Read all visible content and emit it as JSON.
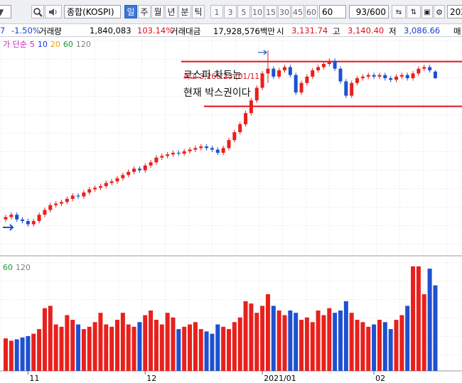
{
  "toolbar": {
    "code_partial": "▼",
    "symbol": "종합(KOSPI)",
    "periods": [
      "일",
      "주",
      "월",
      "년",
      "분",
      "틱"
    ],
    "intervals": [
      "1",
      "3",
      "5",
      "10",
      "15",
      "30",
      "45",
      "60"
    ],
    "interval_select": "60",
    "count": "93/600",
    "date_partial": "202"
  },
  "info": {
    "left_partial": "7",
    "change": "-1.50%",
    "volume_label": "거래량",
    "volume": "1,840,083",
    "volume_ratio": "103.14%",
    "amount_label": "거래대금",
    "amount": "17,928,576백만",
    "open_label": "시",
    "open": "3,131.74",
    "high_label": "고",
    "high": "3,140.40",
    "low_label": "저",
    "low": "3,086.66",
    "right_partial": "매"
  },
  "chart_data": {
    "type": "candlestick",
    "legend": {
      "prefix": "가 단순",
      "ma": [
        {
          "name": "5",
          "color": "#d020c0"
        },
        {
          "name": "10",
          "color": "#2030e0"
        },
        {
          "name": "20",
          "color": "#e8a010"
        },
        {
          "name": "60",
          "color": "#10a030"
        },
        {
          "name": "120",
          "color": "#808080"
        }
      ]
    },
    "volume_legend": [
      {
        "name": "60",
        "color": "#10a030"
      },
      {
        "name": "120",
        "color": "#808080"
      }
    ],
    "annotations": {
      "high_note": "최고 3,266.23 (01/11)",
      "comment": [
        "코스피 차트는",
        "현재 박스권이다"
      ]
    },
    "up_color": "#e8201c",
    "down_color": "#1e50d0",
    "ylim": [
      1980,
      3350
    ],
    "vol_ylim": [
      0,
      2400000
    ],
    "box_lines": [
      3195,
      2913
    ],
    "box_color": "#e0101a",
    "categories": [
      null,
      null,
      null,
      null,
      "11",
      null,
      null,
      null,
      null,
      null,
      null,
      null,
      null,
      null,
      null,
      null,
      null,
      null,
      null,
      null,
      null,
      null,
      null,
      null,
      null,
      "12",
      null,
      null,
      null,
      null,
      null,
      null,
      null,
      null,
      null,
      null,
      null,
      null,
      null,
      null,
      null,
      null,
      null,
      null,
      null,
      null,
      "2021/01",
      null,
      null,
      null,
      null,
      null,
      null,
      null,
      null,
      null,
      null,
      null,
      null,
      null,
      null,
      null,
      null,
      null,
      null,
      null,
      "02",
      null,
      null,
      null,
      null,
      null,
      null,
      null,
      null,
      null,
      null,
      null
    ],
    "open": [
      2200,
      2215,
      2230,
      2200,
      2190,
      2170,
      2190,
      2230,
      2260,
      2290,
      2300,
      2310,
      2330,
      2350,
      2345,
      2370,
      2390,
      2400,
      2410,
      2430,
      2440,
      2460,
      2480,
      2500,
      2520,
      2510,
      2540,
      2560,
      2590,
      2600,
      2610,
      2620,
      2615,
      2630,
      2640,
      2650,
      2660,
      2650,
      2640,
      2620,
      2650,
      2700,
      2750,
      2800,
      2870,
      2950,
      3030,
      3120,
      3150,
      3100,
      3140,
      3160,
      3110,
      3000,
      3060,
      3100,
      3140,
      3160,
      3180,
      3200,
      3150,
      3070,
      2980,
      3060,
      3090,
      3100,
      3110,
      3100,
      3110,
      3090,
      3080,
      3100,
      3110,
      3090,
      3120,
      3150,
      3160,
      3131.74
    ],
    "high": [
      2230,
      2245,
      2245,
      2215,
      2205,
      2205,
      2245,
      2275,
      2305,
      2315,
      2325,
      2345,
      2365,
      2365,
      2385,
      2405,
      2415,
      2425,
      2445,
      2455,
      2475,
      2495,
      2515,
      2535,
      2535,
      2555,
      2575,
      2605,
      2615,
      2625,
      2635,
      2635,
      2645,
      2655,
      2665,
      2675,
      2675,
      2665,
      2655,
      2665,
      2715,
      2765,
      2815,
      2885,
      2965,
      3045,
      3135,
      3266.23,
      3165,
      3155,
      3175,
      3175,
      3125,
      3075,
      3115,
      3155,
      3175,
      3195,
      3215,
      3215,
      3165,
      3085,
      3075,
      3105,
      3115,
      3125,
      3125,
      3125,
      3125,
      3105,
      3115,
      3125,
      3125,
      3135,
      3165,
      3175,
      3175,
      3140.4
    ],
    "low": [
      2185,
      2200,
      2185,
      2175,
      2155,
      2155,
      2175,
      2215,
      2245,
      2275,
      2285,
      2295,
      2315,
      2330,
      2330,
      2355,
      2375,
      2385,
      2395,
      2415,
      2425,
      2445,
      2465,
      2485,
      2495,
      2495,
      2525,
      2545,
      2575,
      2585,
      2595,
      2600,
      2600,
      2615,
      2625,
      2635,
      2635,
      2625,
      2605,
      2605,
      2635,
      2685,
      2735,
      2785,
      2855,
      2935,
      3015,
      3060,
      3085,
      3085,
      3125,
      3095,
      2985,
      2985,
      3045,
      3085,
      3125,
      3145,
      3165,
      3135,
      3055,
      2965,
      2965,
      3045,
      3075,
      3085,
      3085,
      3085,
      3075,
      3065,
      3065,
      3085,
      3075,
      3075,
      3105,
      3135,
      3125,
      3086.66
    ],
    "close": [
      2215,
      2230,
      2200,
      2190,
      2170,
      2190,
      2230,
      2260,
      2290,
      2300,
      2310,
      2330,
      2350,
      2345,
      2370,
      2390,
      2400,
      2410,
      2430,
      2440,
      2460,
      2480,
      2500,
      2520,
      2510,
      2540,
      2560,
      2590,
      2600,
      2610,
      2620,
      2615,
      2630,
      2640,
      2650,
      2660,
      2650,
      2640,
      2620,
      2650,
      2700,
      2750,
      2800,
      2870,
      2950,
      3030,
      3120,
      3150,
      3100,
      3140,
      3160,
      3110,
      3000,
      3060,
      3100,
      3140,
      3160,
      3180,
      3200,
      3150,
      3070,
      2980,
      3060,
      3090,
      3100,
      3110,
      3100,
      3110,
      3090,
      3080,
      3100,
      3110,
      3090,
      3120,
      3150,
      3160,
      3140,
      3090
    ],
    "volume": [
      700000,
      650000,
      680000,
      720000,
      750000,
      800000,
      900000,
      1350000,
      1400000,
      1000000,
      950000,
      1200000,
      1100000,
      1000000,
      900000,
      950000,
      1050000,
      1250000,
      1000000,
      950000,
      1100000,
      1250000,
      1000000,
      950000,
      1050000,
      1200000,
      1300000,
      1100000,
      1000000,
      1250000,
      1150000,
      900000,
      950000,
      1000000,
      1050000,
      900000,
      850000,
      800000,
      1000000,
      950000,
      900000,
      1050000,
      1150000,
      1500000,
      1450000,
      1250000,
      1400000,
      1650000,
      1400000,
      1300000,
      1200000,
      1300000,
      1250000,
      1100000,
      1150000,
      1050000,
      1300000,
      1200000,
      1350000,
      1250000,
      1300000,
      1500000,
      1250000,
      1100000,
      1050000,
      950000,
      1000000,
      1100000,
      1050000,
      900000,
      1100000,
      1200000,
      1400000,
      2250000,
      2250000,
      1650000,
      2200000,
      1840083
    ]
  }
}
